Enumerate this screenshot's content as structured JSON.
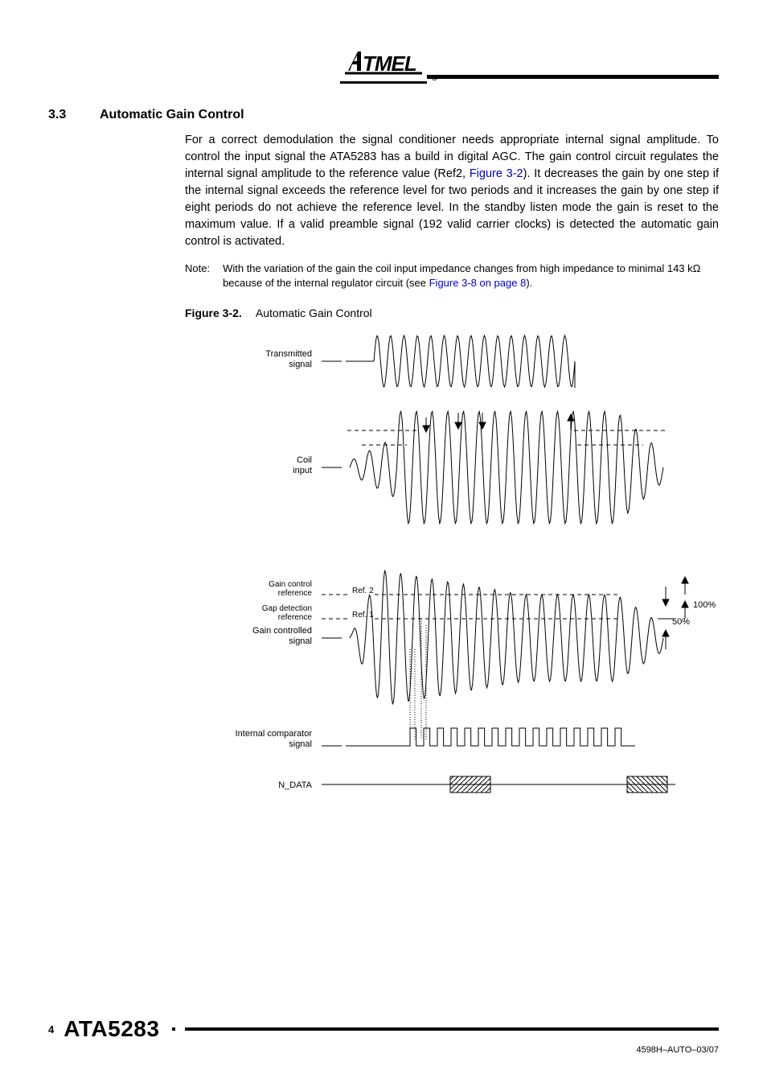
{
  "logo_text": "Atmel",
  "section": {
    "number": "3.3",
    "title": "Automatic Gain Control",
    "body_part1": "For a correct demodulation the signal conditioner needs appropriate internal signal amplitude. To control the input signal the ATA5283 has a build in digital AGC. The gain control circuit regulates the internal signal amplitude to the reference value (Ref2, ",
    "body_link1": "Figure 3-2",
    "body_part2": "). It decreases the gain by one step if the internal signal exceeds the reference level for two periods and it increases the gain by one step if eight periods do not achieve the reference level. In the standby listen mode the gain is reset to the maximum value. If a valid preamble signal (192 valid carrier clocks) is detected the automatic gain control is activated."
  },
  "note": {
    "label": "Note:",
    "text_part1": "With the variation of the gain the coil input impedance changes from high impedance to minimal 143 kΩ because of the internal regulator circuit (see ",
    "text_link": "Figure 3-8 on page 8",
    "text_part2": ")."
  },
  "figure": {
    "label": "Figure 3-2.",
    "title": "Automatic Gain Control",
    "labels": {
      "transmitted": "Transmitted\nsignal",
      "coil": "Coil\ninput",
      "gain_ctrl_ref": "Gain control\nreference",
      "gap_det_ref": "Gap detection\nreference",
      "gain_ctrl_sig": "Gain controlled\nsignal",
      "comparator": "Internal comparator\nsignal",
      "ndata": "N_DATA",
      "ref2": "Ref. 2",
      "ref1": "Ref. 1",
      "p100": "100%",
      "p50": "50%"
    },
    "style": {
      "stroke": "#000000",
      "stroke_width": 1,
      "label_fontsize": 11,
      "ref_fontsize": 10,
      "dash": "4,3"
    }
  },
  "footer": {
    "page": "4",
    "product": "ATA5283",
    "docref": "4598H–AUTO–03/07"
  }
}
